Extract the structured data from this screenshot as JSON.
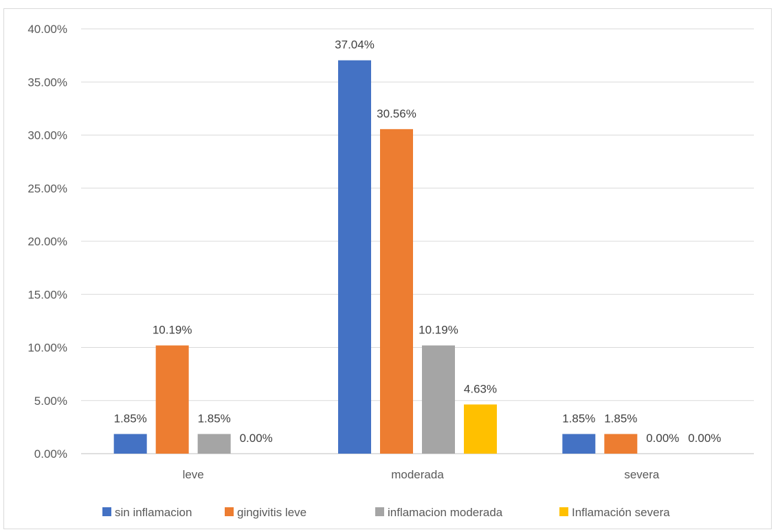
{
  "chart_data": {
    "type": "bar",
    "categories": [
      "leve",
      "moderada",
      "severa"
    ],
    "series": [
      {
        "name": "sin inflamacion",
        "color": "#4472C4",
        "values": [
          1.85,
          37.04,
          1.85
        ],
        "labels": [
          "1.85%",
          "37.04%",
          "1.85%"
        ]
      },
      {
        "name": "gingivitis leve",
        "color": "#ED7D31",
        "values": [
          10.19,
          30.56,
          1.85
        ],
        "labels": [
          "10.19%",
          "30.56%",
          "1.85%"
        ]
      },
      {
        "name": "inflamacion moderada",
        "color": "#A5A5A5",
        "values": [
          1.85,
          10.19,
          0.0
        ],
        "labels": [
          "1.85%",
          "10.19%",
          "0.00%"
        ]
      },
      {
        "name": "Inflamación severa",
        "color": "#FFC000",
        "values": [
          0.0,
          4.63,
          0.0
        ],
        "labels": [
          "0.00%",
          "4.63%",
          "0.00%"
        ]
      }
    ],
    "y_ticks": [
      "0.00%",
      "5.00%",
      "10.00%",
      "15.00%",
      "20.00%",
      "25.00%",
      "30.00%",
      "35.00%",
      "40.00%"
    ],
    "ylim": [
      0,
      40
    ],
    "grid": true,
    "legend_position": "bottom"
  }
}
